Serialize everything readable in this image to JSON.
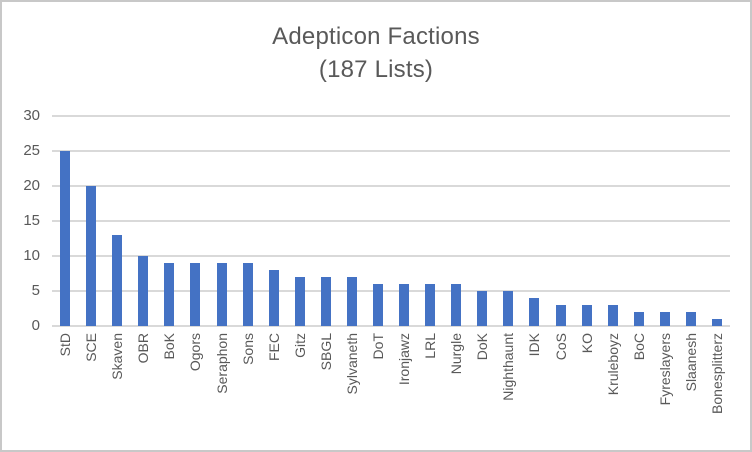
{
  "chart_data": {
    "type": "bar",
    "title": "Adepticon Factions",
    "subtitle": "(187 Lists)",
    "categories": [
      "StD",
      "SCE",
      "Skaven",
      "OBR",
      "BoK",
      "Ogors",
      "Seraphon",
      "Sons",
      "FEC",
      "Gitz",
      "SBGL",
      "Sylvaneth",
      "DoT",
      "Ironjawz",
      "LRL",
      "Nurgle",
      "DoK",
      "Nighthaunt",
      "IDK",
      "CoS",
      "KO",
      "Kruleboyz",
      "BoC",
      "Fyreslayers",
      "Slaanesh",
      "Bonesplitterz"
    ],
    "values": [
      25,
      20,
      13,
      10,
      9,
      9,
      9,
      9,
      8,
      7,
      7,
      7,
      6,
      6,
      6,
      6,
      5,
      5,
      4,
      3,
      3,
      3,
      2,
      2,
      2,
      1
    ],
    "total_lists": 187,
    "xlabel": "",
    "ylabel": "",
    "ylim": [
      0,
      30
    ],
    "yticks": [
      0,
      5,
      10,
      15,
      20,
      25,
      30
    ],
    "grid": true,
    "legend_position": "none",
    "bar_color": "#4472c4",
    "gridline_color": "#d9d9d9",
    "text_color": "#595959",
    "frame_border_color": "#c8c8c8",
    "background_color": "#ffffff"
  }
}
